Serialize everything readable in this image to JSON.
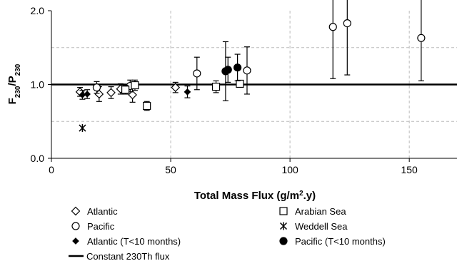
{
  "chart_data": {
    "type": "scatter",
    "title": "",
    "xlabel": "Total Mass Flux (g/m².y)",
    "xlabel_parts": {
      "main": "Total Mass Flux (g/m",
      "sup": "2",
      "tail": ".y)"
    },
    "ylabel_parts": {
      "f": "F",
      "fsub": "230",
      "slash": "/P",
      "psub": "230"
    },
    "xlim": [
      0,
      170
    ],
    "ylim": [
      0,
      2.0
    ],
    "x_ticks": [
      {
        "value": 0,
        "label": "0"
      },
      {
        "value": 50,
        "label": "50"
      },
      {
        "value": 100,
        "label": "100"
      },
      {
        "value": 150,
        "label": "150"
      }
    ],
    "y_ticks": [
      {
        "value": 0,
        "label": "0.0"
      },
      {
        "value": 1,
        "label": "1.0"
      },
      {
        "value": 2,
        "label": "2.0"
      }
    ],
    "dashed_gridlines_y": [
      0.5,
      1.5
    ],
    "reference_line": {
      "name": "Constant 230Th flux",
      "y": 1.0
    },
    "legend_position": "bottom",
    "series": [
      {
        "name": "Atlantic",
        "marker": "diamond-open",
        "points": [
          {
            "x": 12,
            "y": 0.9,
            "err": 0.06
          },
          {
            "x": 20,
            "y": 0.87,
            "err": 0.1
          },
          {
            "x": 25,
            "y": 0.89,
            "err": 0.08
          },
          {
            "x": 29,
            "y": 0.94,
            "err": 0.07
          },
          {
            "x": 34,
            "y": 0.86,
            "err": 0.1
          },
          {
            "x": 52,
            "y": 0.96,
            "err": 0.07
          }
        ]
      },
      {
        "name": "Pacific",
        "marker": "circle-open",
        "points": [
          {
            "x": 19,
            "y": 0.96,
            "err": 0.08
          },
          {
            "x": 33,
            "y": 0.98,
            "err": 0.08
          },
          {
            "x": 61,
            "y": 1.15,
            "err": 0.22
          },
          {
            "x": 82,
            "y": 1.19,
            "err": 0.32
          },
          {
            "x": 118,
            "y": 1.78,
            "err": 0.7
          },
          {
            "x": 124,
            "y": 1.83,
            "err": 0.7
          },
          {
            "x": 155,
            "y": 1.63,
            "err": 0.58
          }
        ]
      },
      {
        "name": "Atlantic (T<10 months)",
        "marker": "diamond-filled",
        "points": [
          {
            "x": 13,
            "y": 0.86,
            "err": 0.06
          },
          {
            "x": 15,
            "y": 0.87,
            "err": 0.06
          },
          {
            "x": 57,
            "y": 0.9,
            "err": 0.08
          }
        ]
      },
      {
        "name": "Arabian Sea",
        "marker": "square-open",
        "points": [
          {
            "x": 31,
            "y": 0.93,
            "err": 0.06
          },
          {
            "x": 35,
            "y": 0.99,
            "err": 0.07
          },
          {
            "x": 40,
            "y": 0.71,
            "err": 0.06
          },
          {
            "x": 69,
            "y": 0.97,
            "err": 0.08
          },
          {
            "x": 79,
            "y": 1.01,
            "err": 0.04
          }
        ]
      },
      {
        "name": "Weddell Sea",
        "marker": "asterisk",
        "points": [
          {
            "x": 13,
            "y": 0.41,
            "err": 0
          }
        ]
      },
      {
        "name": "Pacific (T<10 months)",
        "marker": "circle-filled",
        "points": [
          {
            "x": 73,
            "y": 1.18,
            "err": 0.4
          },
          {
            "x": 74,
            "y": 1.2,
            "err": 0.17
          },
          {
            "x": 78,
            "y": 1.23,
            "err": 0.18
          }
        ]
      }
    ]
  }
}
